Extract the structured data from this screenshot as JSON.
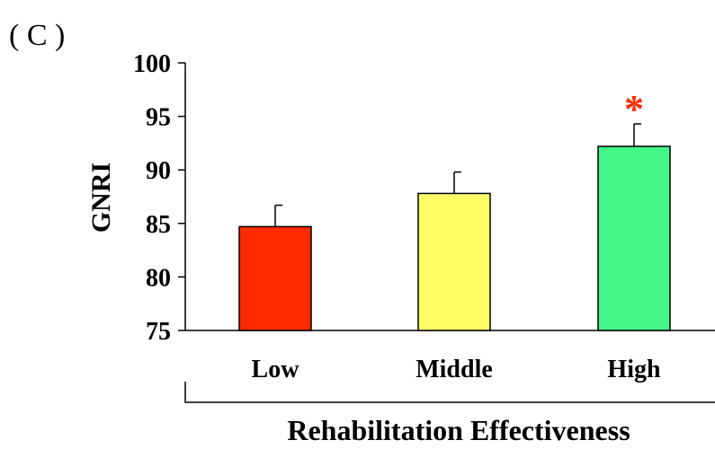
{
  "panel_label": "( C )",
  "chart_data": {
    "type": "bar",
    "title": "",
    "ylabel": "GNRI",
    "xlabel": "Rehabilitation Effectiveness",
    "ylim": [
      75,
      100
    ],
    "yticks": [
      75,
      80,
      85,
      90,
      95,
      100
    ],
    "grid": false,
    "categories": [
      "Low",
      "Middle",
      "High"
    ],
    "values": [
      84.7,
      87.8,
      92.2
    ],
    "errors": [
      2.0,
      2.0,
      2.1
    ],
    "colors": [
      "#ff2a00",
      "#ffff66",
      "#44f58a"
    ],
    "significance": [
      "",
      "",
      "*"
    ],
    "significance_color": "#ff2a00"
  }
}
